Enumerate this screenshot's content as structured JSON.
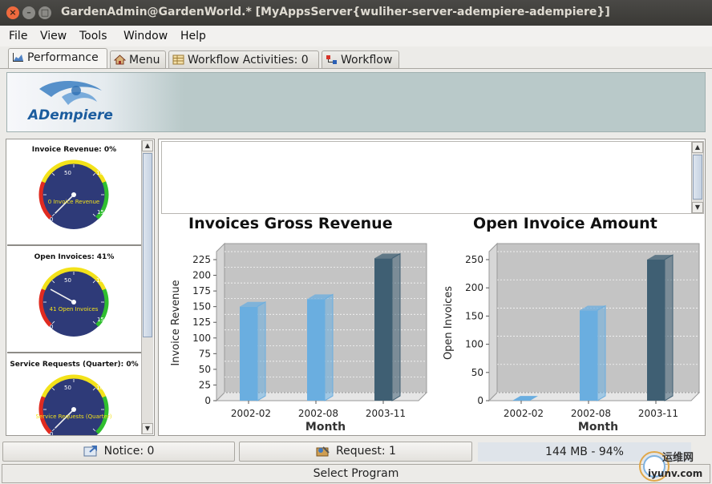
{
  "window": {
    "title": "GardenAdmin@GardenWorld.* [MyAppsServer{wuliher-server-adempiere-adempiere}]"
  },
  "menu": [
    "File",
    "View",
    "Tools",
    "Window",
    "Help"
  ],
  "tabs": [
    {
      "label": "Performance",
      "icon": "chart-icon",
      "active": true
    },
    {
      "label": "Menu",
      "icon": "home-icon",
      "active": false
    },
    {
      "label": "Workflow Activities: 0",
      "icon": "table-icon",
      "active": false
    },
    {
      "label": "Workflow",
      "icon": "workflow-icon",
      "active": false
    }
  ],
  "banner": {
    "logo_text": "ADempiere"
  },
  "gauges": [
    {
      "title": "Invoice Revenue: 0%",
      "label": "0 Invoice Revenue",
      "value": 0,
      "max": 150,
      "ticks": [
        "0",
        "50",
        "100",
        "150"
      ]
    },
    {
      "title": "Open Invoices: 41%",
      "label": "41 Open Invoices",
      "value": 41,
      "max": 150,
      "ticks": [
        "0",
        "50",
        "100",
        "150"
      ]
    },
    {
      "title": "Service Requests (Quarter): 0%",
      "label": "Service Requests (Quarter)",
      "value": 0,
      "max": 150,
      "ticks": [
        "0",
        "50",
        "100"
      ]
    }
  ],
  "chart_data": [
    {
      "type": "bar",
      "title": "Invoices Gross Revenue",
      "xlabel": "Month",
      "ylabel": "Invoice Revenue",
      "categories": [
        "2002-02",
        "2002-08",
        "2003-11"
      ],
      "values": [
        150,
        162,
        227
      ],
      "bar_colors": [
        "#6aaee0",
        "#6aaee0",
        "#3f5f73"
      ],
      "ylim": [
        0,
        225
      ],
      "yticks": [
        0,
        25,
        50,
        75,
        100,
        125,
        150,
        175,
        200,
        225
      ]
    },
    {
      "type": "bar",
      "title": "Open Invoice Amount",
      "xlabel": "Month",
      "ylabel": "Open Invoices",
      "categories": [
        "2002-02",
        "2002-08",
        "2003-11"
      ],
      "values": [
        0,
        160,
        250
      ],
      "bar_colors": [
        "#6aaee0",
        "#6aaee0",
        "#3f5f73"
      ],
      "ylim": [
        0,
        250
      ],
      "yticks": [
        0,
        50,
        100,
        150,
        200,
        250
      ]
    }
  ],
  "status": {
    "notice": "Notice: 0",
    "request": "Request: 1",
    "memory": "144 MB - 94%",
    "select_program": "Select Program"
  },
  "watermark": {
    "cn": "运维网",
    "url": "iyunv.com"
  }
}
